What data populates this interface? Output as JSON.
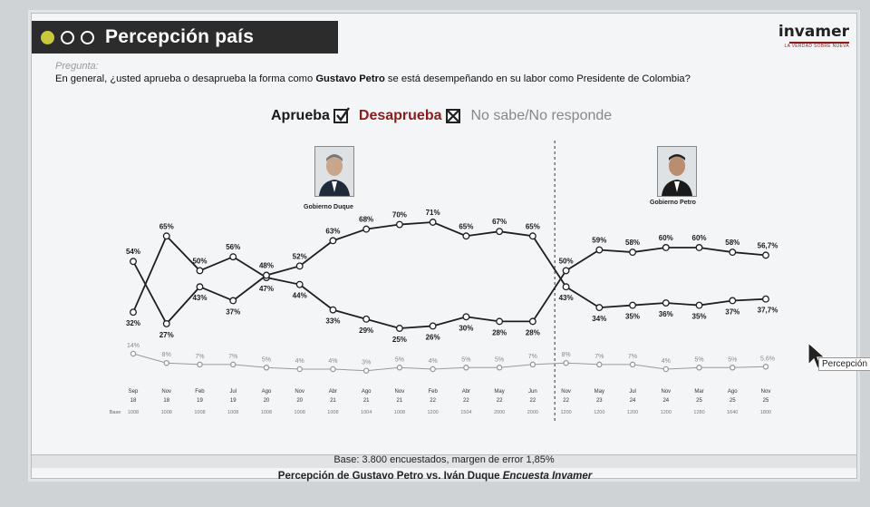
{
  "slide": {
    "title": "Percepción país",
    "logo_name": "invamer",
    "logo_tag": "LA VERDAD SOBRE NUEVA",
    "question_label": "Pregunta:",
    "question_pre": "En general, ¿usted aprueba o desaprueba la forma como ",
    "question_name": "Gustavo Petro",
    "question_post": " se está desempeñando en su labor como Presidente de Colombia?",
    "base_text": "Base: 3.800 encuestados, margen de error 1,85%",
    "caption_main": "Percepción de Gustavo Petro vs. Iván Duque ",
    "caption_italic": "Encuesta Invamer",
    "cursor_label": "Percepción"
  },
  "legend": {
    "approve": "Aprueba",
    "disapprove": "Desaprueba",
    "dk": "No sabe/No responde"
  },
  "governments": {
    "duque": "Gobierno Duque",
    "petro": "Gobierno Petro"
  },
  "colors": {
    "line": "#1f1f1f",
    "dk_line": "#9a9a9a",
    "marker_fill": "#ffffff",
    "divider": "#555555"
  },
  "chart_data": {
    "type": "line",
    "categories": [
      "Sep 18",
      "Nov 18",
      "Feb 19",
      "Jul 19",
      "Ago 20",
      "Nov 20",
      "Abr 21",
      "Ago 21",
      "Nov 21",
      "Feb 22",
      "Abr 22",
      "May 22",
      "Jun 22",
      "Nov 22",
      "May 23",
      "Jul 24",
      "Nov 24",
      "Mar 25",
      "Ago 25",
      "Nov 25"
    ],
    "month_labels": [
      "Sep",
      "Nov",
      "Feb",
      "Jul",
      "Ago",
      "Nov",
      "Abr",
      "Ago",
      "Nov",
      "Feb",
      "Abr",
      "May",
      "Jun",
      "Nov",
      "May",
      "Jul",
      "Nov",
      "Mar",
      "Ago",
      "Nov"
    ],
    "year_labels": [
      "18",
      "18",
      "19",
      "19",
      "20",
      "20",
      "21",
      "21",
      "21",
      "22",
      "22",
      "22",
      "22",
      "22",
      "23",
      "24",
      "24",
      "25",
      "25",
      "25"
    ],
    "base_label": "Base",
    "base_values": [
      "1008",
      "1008",
      "1008",
      "1008",
      "1008",
      "1008",
      "1008",
      "1004",
      "1008",
      "1200",
      "1504",
      "2000",
      "2000",
      "1200",
      "1200",
      "1200",
      "1200",
      "1280",
      "1640",
      "1800"
    ],
    "series": [
      {
        "name": "Aprueba",
        "values": [
          32,
          65,
          50,
          56,
          47,
          44,
          33,
          29,
          25,
          26,
          30,
          28,
          28,
          50,
          59,
          58,
          60,
          60,
          58,
          56.7
        ],
        "labels": [
          "32%",
          "65%",
          "50%",
          "56%",
          "47%",
          "44%",
          "33%",
          "29%",
          "25%",
          "26%",
          "30%",
          "28%",
          "28%",
          "50%",
          "59%",
          "58%",
          "60%",
          "60%",
          "58%",
          "56,7%"
        ]
      },
      {
        "name": "Desaprueba",
        "values": [
          54,
          27,
          43,
          37,
          48,
          52,
          63,
          68,
          70,
          71,
          65,
          67,
          65,
          43,
          34,
          35,
          36,
          35,
          37,
          37.7
        ],
        "labels": [
          "54%",
          "27%",
          "43%",
          "37%",
          "48%",
          "52%",
          "63%",
          "68%",
          "70%",
          "71%",
          "65%",
          "67%",
          "65%",
          "43%",
          "34%",
          "35%",
          "36%",
          "35%",
          "37%",
          "37,7%"
        ]
      },
      {
        "name": "No sabe/No responde",
        "values": [
          14,
          8,
          7,
          7,
          5,
          4,
          4,
          3,
          5,
          4,
          5,
          5,
          7,
          8,
          7,
          7,
          4,
          5,
          5,
          5.6
        ],
        "labels": [
          "14%",
          "8%",
          "7%",
          "7%",
          "5%",
          "4%",
          "4%",
          "3%",
          "5%",
          "4%",
          "5%",
          "5%",
          "7%",
          "8%",
          "7%",
          "7%",
          "4%",
          "5%",
          "5%",
          "5,6%"
        ]
      }
    ],
    "divider_after_index": 12,
    "ylim": [
      0,
      80
    ]
  }
}
